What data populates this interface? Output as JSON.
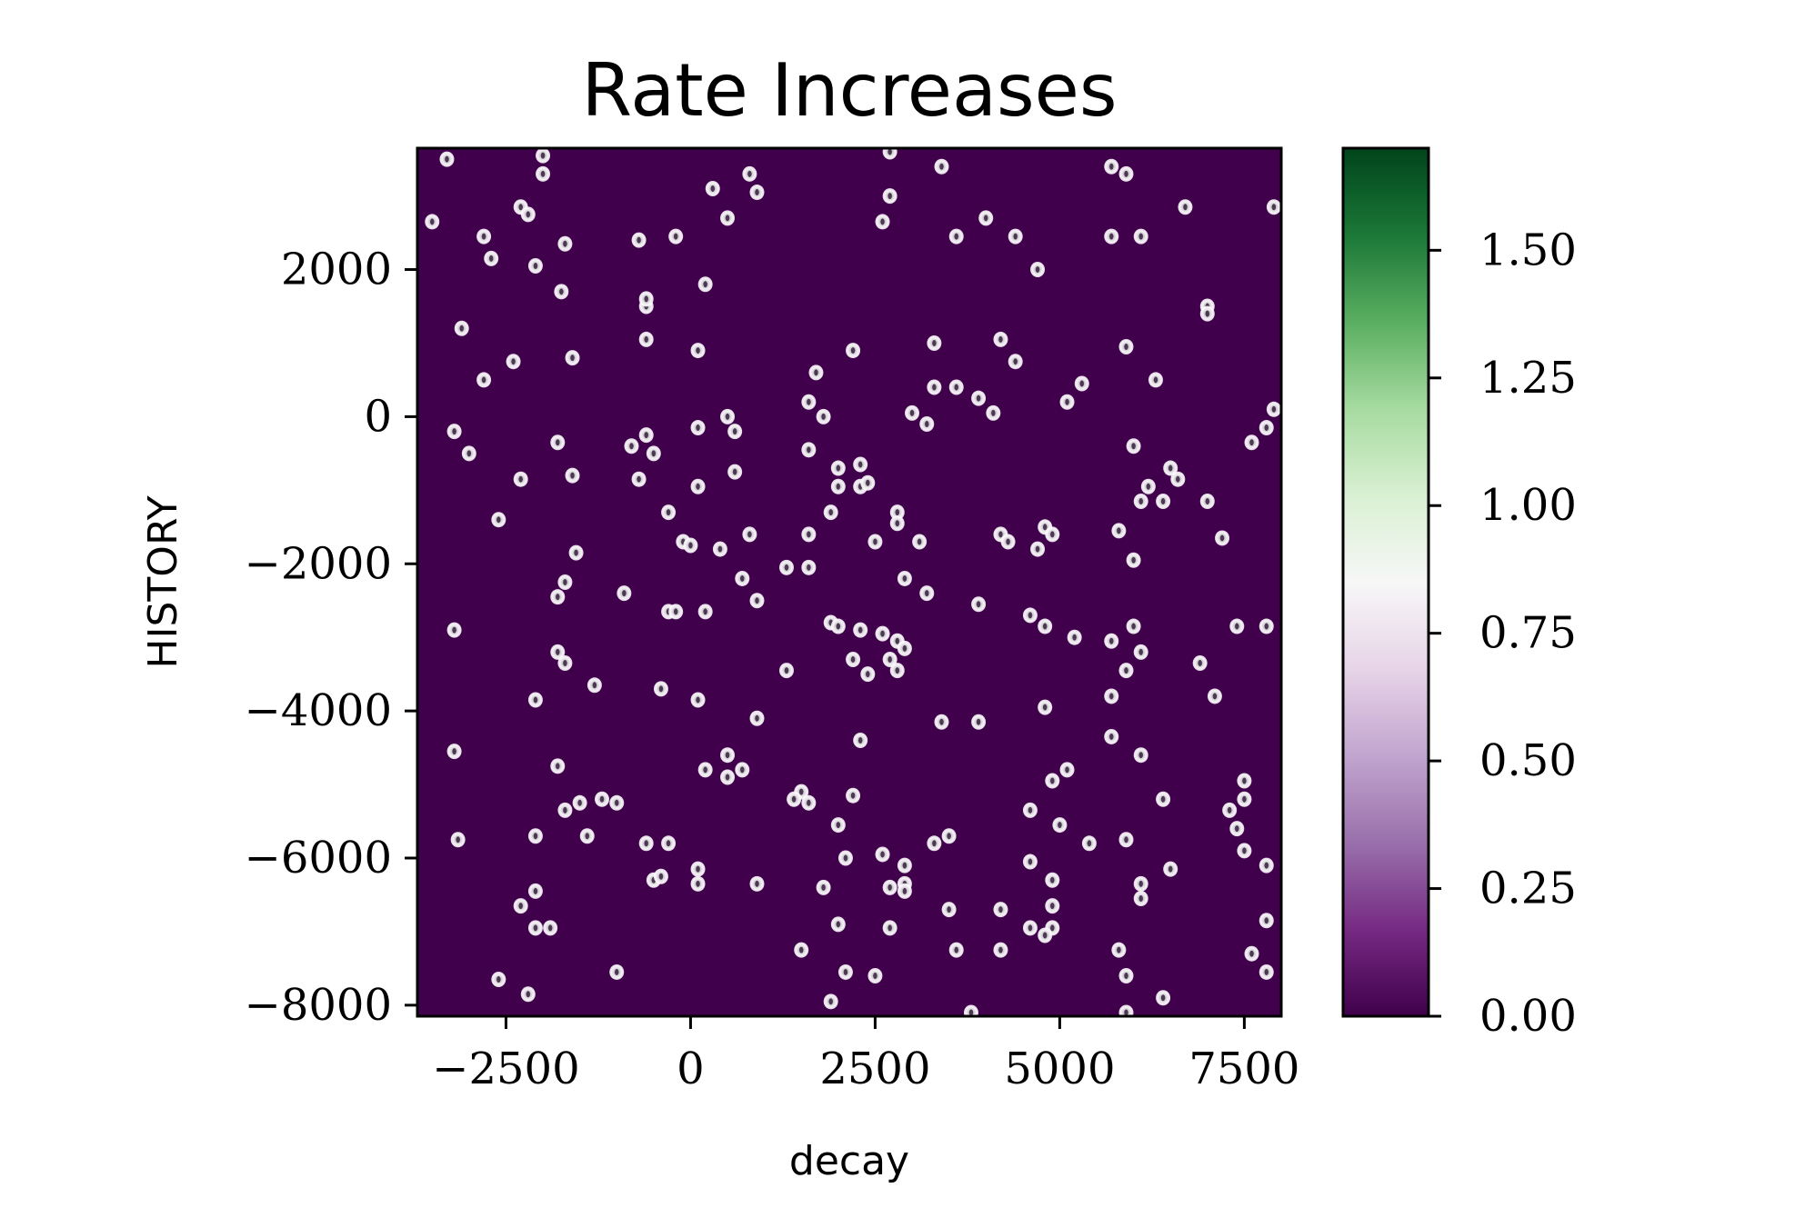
{
  "chart_data": {
    "type": "heatmap",
    "title": "Rate Increases",
    "xlabel": "decay",
    "ylabel": "HISTORY",
    "xlim": [
      -3700,
      8000
    ],
    "ylim": [
      -8150,
      3650
    ],
    "xticks": [
      -2500,
      0,
      2500,
      5000,
      7500
    ],
    "xtick_labels": [
      "−2500",
      "0",
      "2500",
      "5000",
      "7500"
    ],
    "yticks": [
      -8000,
      -6000,
      -4000,
      -2000,
      0,
      2000
    ],
    "ytick_labels": [
      "−8000",
      "−6000",
      "−4000",
      "−2000",
      "0",
      "2000"
    ],
    "colorbar": {
      "colormap": "PRGn",
      "range": [
        0,
        1.7
      ],
      "ticks": [
        0.0,
        0.25,
        0.5,
        0.75,
        1.0,
        1.25,
        1.5
      ],
      "tick_labels": [
        "0.00",
        "0.25",
        "0.50",
        "0.75",
        "1.00",
        "1.25",
        "1.50"
      ],
      "colors": [
        "#40004b",
        "#762a83",
        "#9970ab",
        "#c2a5cf",
        "#e7d4e8",
        "#f7f7f7",
        "#d9f0d3",
        "#a6dba0",
        "#5aae61",
        "#1b7837",
        "#00441b"
      ]
    },
    "background_value": 0.0,
    "peaks_note": "Narrow Gaussian peaks (value approx. 0.7-1.0) scattered over the field; coordinates in data units.",
    "peaks": [
      [
        -3300,
        3500
      ],
      [
        -3500,
        2650
      ],
      [
        -2800,
        2450
      ],
      [
        -2700,
        2150
      ],
      [
        -3100,
        1200
      ],
      [
        -2300,
        2850
      ],
      [
        -2200,
        2750
      ],
      [
        -2000,
        3300
      ],
      [
        -2000,
        3550
      ],
      [
        -2100,
        2050
      ],
      [
        -1700,
        2350
      ],
      [
        -1750,
        1700
      ],
      [
        -1600,
        800
      ],
      [
        -2800,
        500
      ],
      [
        -2400,
        750
      ],
      [
        -3200,
        -200
      ],
      [
        -3000,
        -500
      ],
      [
        -2300,
        -850
      ],
      [
        -2600,
        -1400
      ],
      [
        -1800,
        -350
      ],
      [
        -1600,
        -800
      ],
      [
        -1550,
        -1850
      ],
      [
        -1700,
        -2250
      ],
      [
        -1800,
        -2450
      ],
      [
        -3200,
        -2900
      ],
      [
        -1800,
        -3200
      ],
      [
        -1700,
        -3350
      ],
      [
        -1300,
        -3650
      ],
      [
        -2100,
        -3850
      ],
      [
        -3200,
        -4550
      ],
      [
        -1800,
        -4750
      ],
      [
        -1700,
        -5350
      ],
      [
        -1500,
        -5250
      ],
      [
        -1200,
        -5200
      ],
      [
        -1000,
        -5250
      ],
      [
        -2100,
        -5700
      ],
      [
        -1400,
        -5700
      ],
      [
        -3150,
        -5750
      ],
      [
        -2300,
        -6650
      ],
      [
        -2100,
        -6450
      ],
      [
        -2100,
        -6950
      ],
      [
        -1900,
        -6950
      ],
      [
        -2600,
        -7650
      ],
      [
        -2200,
        -7850
      ],
      [
        -1000,
        -7550
      ],
      [
        -700,
        2400
      ],
      [
        -200,
        2450
      ],
      [
        -600,
        1500
      ],
      [
        -600,
        1050
      ],
      [
        100,
        900
      ],
      [
        200,
        1800
      ],
      [
        300,
        3100
      ],
      [
        500,
        2700
      ],
      [
        800,
        3300
      ],
      [
        900,
        3050
      ],
      [
        -600,
        1600
      ],
      [
        -800,
        -400
      ],
      [
        -600,
        -250
      ],
      [
        -500,
        -500
      ],
      [
        -700,
        -850
      ],
      [
        -300,
        -1300
      ],
      [
        100,
        -150
      ],
      [
        500,
        0
      ],
      [
        600,
        -200
      ],
      [
        100,
        -950
      ],
      [
        600,
        -750
      ],
      [
        -100,
        -1700
      ],
      [
        0,
        -1750
      ],
      [
        400,
        -1800
      ],
      [
        800,
        -1600
      ],
      [
        900,
        -2500
      ],
      [
        700,
        -2200
      ],
      [
        -900,
        -2400
      ],
      [
        -300,
        -2650
      ],
      [
        -200,
        -2650
      ],
      [
        200,
        -2650
      ],
      [
        -400,
        -3700
      ],
      [
        100,
        -3850
      ],
      [
        900,
        -4100
      ],
      [
        200,
        -4800
      ],
      [
        500,
        -4600
      ],
      [
        500,
        -4900
      ],
      [
        700,
        -4800
      ],
      [
        -600,
        -5800
      ],
      [
        -300,
        -5800
      ],
      [
        -500,
        -6300
      ],
      [
        -400,
        -6250
      ],
      [
        100,
        -6150
      ],
      [
        100,
        -6350
      ],
      [
        900,
        -6350
      ],
      [
        1600,
        -450
      ],
      [
        1600,
        200
      ],
      [
        1800,
        0
      ],
      [
        1700,
        600
      ],
      [
        2200,
        900
      ],
      [
        2000,
        -700
      ],
      [
        2000,
        -950
      ],
      [
        2300,
        -650
      ],
      [
        2300,
        -950
      ],
      [
        2400,
        -900
      ],
      [
        1900,
        -1300
      ],
      [
        1600,
        -1600
      ],
      [
        2500,
        -1700
      ],
      [
        1300,
        -2050
      ],
      [
        1600,
        -2050
      ],
      [
        1900,
        -2800
      ],
      [
        2000,
        -2850
      ],
      [
        2300,
        -2900
      ],
      [
        2200,
        -3300
      ],
      [
        2400,
        -3500
      ],
      [
        2600,
        -2950
      ],
      [
        2700,
        -3300
      ],
      [
        1300,
        -3450
      ],
      [
        1500,
        -5100
      ],
      [
        1400,
        -5200
      ],
      [
        1600,
        -5250
      ],
      [
        2300,
        -4400
      ],
      [
        2200,
        -5150
      ],
      [
        2000,
        -5550
      ],
      [
        2100,
        -6000
      ],
      [
        1800,
        -6400
      ],
      [
        2000,
        -6900
      ],
      [
        1500,
        -7250
      ],
      [
        2100,
        -7550
      ],
      [
        1900,
        -7950
      ],
      [
        2500,
        -7600
      ],
      [
        2600,
        2650
      ],
      [
        2700,
        3000
      ],
      [
        2700,
        3600
      ],
      [
        3400,
        3400
      ],
      [
        3600,
        2450
      ],
      [
        3300,
        1000
      ],
      [
        3300,
        400
      ],
      [
        3600,
        400
      ],
      [
        3900,
        250
      ],
      [
        4100,
        50
      ],
      [
        4200,
        1050
      ],
      [
        4400,
        750
      ],
      [
        4000,
        2700
      ],
      [
        4400,
        2450
      ],
      [
        4700,
        2000
      ],
      [
        3000,
        50
      ],
      [
        3200,
        -100
      ],
      [
        2800,
        -1300
      ],
      [
        2800,
        -1450
      ],
      [
        3100,
        -1700
      ],
      [
        2900,
        -2200
      ],
      [
        3200,
        -2400
      ],
      [
        2800,
        -3050
      ],
      [
        2900,
        -3150
      ],
      [
        2800,
        -3450
      ],
      [
        3900,
        -2550
      ],
      [
        4200,
        -1600
      ],
      [
        4300,
        -1700
      ],
      [
        4700,
        -1800
      ],
      [
        4800,
        -1500
      ],
      [
        4900,
        -1600
      ],
      [
        4600,
        -2700
      ],
      [
        4800,
        -2850
      ],
      [
        5200,
        -3000
      ],
      [
        3400,
        -4150
      ],
      [
        3900,
        -4150
      ],
      [
        4800,
        -3950
      ],
      [
        4900,
        -4950
      ],
      [
        5100,
        -4800
      ],
      [
        4600,
        -5350
      ],
      [
        5000,
        -5550
      ],
      [
        3300,
        -5800
      ],
      [
        3500,
        -5700
      ],
      [
        4600,
        -6050
      ],
      [
        4900,
        -6300
      ],
      [
        2900,
        -6100
      ],
      [
        2600,
        -5950
      ],
      [
        2700,
        -6400
      ],
      [
        2900,
        -6350
      ],
      [
        2900,
        -6450
      ],
      [
        3500,
        -6700
      ],
      [
        4200,
        -6700
      ],
      [
        4900,
        -6650
      ],
      [
        4900,
        -6950
      ],
      [
        4600,
        -6950
      ],
      [
        3600,
        -7250
      ],
      [
        4200,
        -7250
      ],
      [
        4800,
        -7050
      ],
      [
        3800,
        -8100
      ],
      [
        2700,
        -6950
      ],
      [
        5700,
        3400
      ],
      [
        5900,
        3300
      ],
      [
        5700,
        2450
      ],
      [
        6100,
        2450
      ],
      [
        5900,
        950
      ],
      [
        6300,
        500
      ],
      [
        5300,
        450
      ],
      [
        5100,
        200
      ],
      [
        6000,
        -400
      ],
      [
        6200,
        -950
      ],
      [
        6100,
        -1150
      ],
      [
        6500,
        -700
      ],
      [
        6600,
        -850
      ],
      [
        6400,
        -1150
      ],
      [
        7000,
        -1150
      ],
      [
        5800,
        -1550
      ],
      [
        6000,
        -1950
      ],
      [
        7200,
        -1650
      ],
      [
        6000,
        -2850
      ],
      [
        5700,
        -3050
      ],
      [
        6100,
        -3200
      ],
      [
        5900,
        -3450
      ],
      [
        6900,
        -3350
      ],
      [
        7100,
        -3800
      ],
      [
        5700,
        -3800
      ],
      [
        6100,
        -4600
      ],
      [
        5700,
        -4350
      ],
      [
        5400,
        -5800
      ],
      [
        5900,
        -5750
      ],
      [
        6400,
        -5200
      ],
      [
        6500,
        -6150
      ],
      [
        6100,
        -6350
      ],
      [
        6100,
        -6550
      ],
      [
        5800,
        -7250
      ],
      [
        5900,
        -7600
      ],
      [
        6400,
        -7900
      ],
      [
        5900,
        -8100
      ],
      [
        7000,
        1500
      ],
      [
        7000,
        1400
      ],
      [
        7900,
        2850
      ],
      [
        6700,
        2850
      ],
      [
        7900,
        100
      ],
      [
        7600,
        -350
      ],
      [
        7800,
        -150
      ],
      [
        7400,
        -2850
      ],
      [
        7800,
        -2850
      ],
      [
        7500,
        -4950
      ],
      [
        7500,
        -5200
      ],
      [
        7300,
        -5350
      ],
      [
        7400,
        -5600
      ],
      [
        7500,
        -5900
      ],
      [
        7800,
        -6100
      ],
      [
        7800,
        -6850
      ],
      [
        7600,
        -7300
      ],
      [
        7800,
        -7550
      ]
    ]
  }
}
